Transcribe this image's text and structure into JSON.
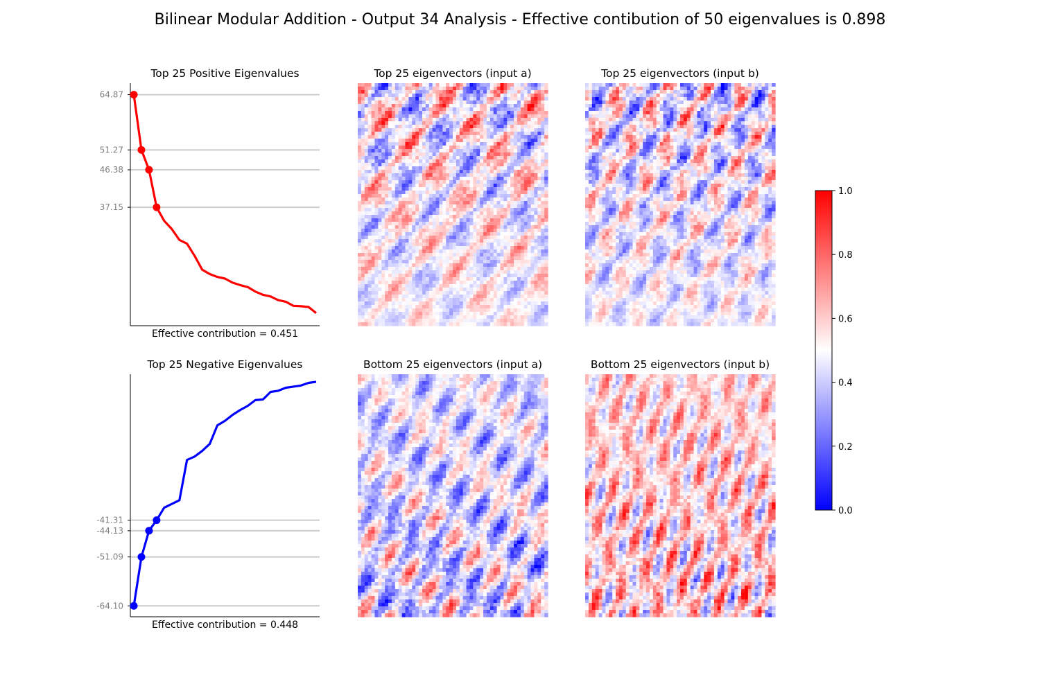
{
  "title": "Bilinear Modular Addition - Output 34 Analysis - Effective contibution of 50 eigenvalues is 0.898",
  "chart_data": [
    {
      "type": "line",
      "title": "Top 25 Positive Eigenvalues",
      "xlabel": "Effective contribution = 0.451",
      "color": "#ff0000",
      "x": [
        0,
        1,
        2,
        3,
        4,
        5,
        6,
        7,
        8,
        9,
        10,
        11,
        12,
        13,
        14,
        15,
        16,
        17,
        18,
        19,
        20,
        21,
        22,
        23,
        24
      ],
      "values": [
        64.87,
        51.27,
        46.38,
        37.15,
        33.8,
        31.8,
        29.1,
        28.2,
        25.2,
        21.8,
        20.7,
        20.0,
        19.6,
        18.6,
        18.0,
        17.5,
        16.4,
        15.6,
        15.2,
        14.3,
        13.9,
        12.9,
        12.8,
        12.6,
        11.1
      ],
      "highlighted": [
        64.87,
        51.27,
        46.38,
        37.15
      ],
      "tick_labels": [
        "64.87",
        "51.27",
        "46.38",
        "37.15"
      ],
      "ylim": [
        8.0,
        67.7
      ]
    },
    {
      "type": "line",
      "title": "Top 25 Negative Eigenvalues",
      "xlabel": "Effective contribution = 0.448",
      "color": "#0000ff",
      "x": [
        0,
        1,
        2,
        3,
        4,
        5,
        6,
        7,
        8,
        9,
        10,
        11,
        12,
        13,
        14,
        15,
        16,
        17,
        18,
        19,
        20,
        21,
        22,
        23,
        24
      ],
      "values": [
        -64.1,
        -51.09,
        -44.13,
        -41.31,
        -38.0,
        -37.0,
        -36.0,
        -25.3,
        -24.4,
        -22.9,
        -21.0,
        -16.1,
        -14.9,
        -13.3,
        -12.0,
        -10.9,
        -9.4,
        -9.2,
        -7.2,
        -6.9,
        -6.1,
        -5.8,
        -5.5,
        -4.8,
        -4.5
      ],
      "highlighted": [
        -64.1,
        -51.09,
        -44.13,
        -41.31
      ],
      "tick_labels": [
        "-41.31",
        "-44.13",
        "-51.09",
        "-64.10"
      ],
      "ylim": [
        -67.0,
        -2.5
      ]
    },
    {
      "type": "heatmap",
      "title": "Top 25 eigenvectors (input a)",
      "cmap": "bwr"
    },
    {
      "type": "heatmap",
      "title": "Top 25 eigenvectors (input b)",
      "cmap": "bwr"
    },
    {
      "type": "heatmap",
      "title": "Bottom 25 eigenvectors (input a)",
      "cmap": "bwr"
    },
    {
      "type": "heatmap",
      "title": "Bottom 25 eigenvectors (input b)",
      "cmap": "bwr"
    }
  ],
  "colorbar": {
    "range": [
      0.0,
      1.0
    ],
    "ticks": [
      "1.0",
      "0.8",
      "0.6",
      "0.4",
      "0.2",
      "0.0"
    ],
    "colors": {
      "low": "#0000ff",
      "mid": "#ffffff",
      "high": "#ff0000"
    }
  }
}
